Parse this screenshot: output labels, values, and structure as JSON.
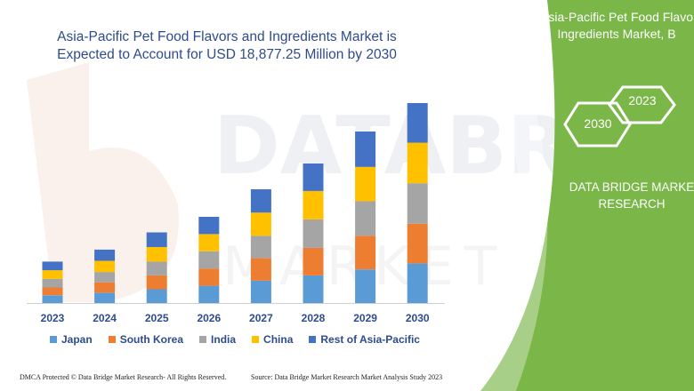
{
  "chart_data": {
    "type": "bar",
    "stacked": true,
    "title": "Asia-Pacific Pet Food Flavors and Ingredients Market is Expected to Account for USD 18,877.25 Million by 2030",
    "title_lines": [
      "Asia-Pacific Pet Food Flavors and Ingredients Market is",
      "Expected to Account for USD 18,877.25 Million by 2030"
    ],
    "categories": [
      "2023",
      "2024",
      "2025",
      "2026",
      "2027",
      "2028",
      "2029",
      "2030"
    ],
    "series": [
      {
        "name": "Japan",
        "color": "#5b9bd5",
        "values": [
          9,
          12,
          16,
          20,
          26,
          32,
          39,
          46
        ]
      },
      {
        "name": "South Korea",
        "color": "#ed7d31",
        "values": [
          9,
          12,
          16,
          20,
          26,
          32,
          39,
          46
        ]
      },
      {
        "name": "India",
        "color": "#a5a5a5",
        "values": [
          10,
          12,
          16,
          20,
          26,
          33,
          40,
          47
        ]
      },
      {
        "name": "China",
        "color": "#ffc000",
        "values": [
          10,
          13,
          17,
          20,
          27,
          33,
          40,
          47
        ]
      },
      {
        "name": "Rest of Asia-Pacific",
        "color": "#4472c4",
        "values": [
          10,
          13,
          17,
          20,
          27,
          32,
          41,
          46
        ]
      }
    ],
    "legend_position": "bottom",
    "grid": false
  },
  "panel": {
    "title_lines": [
      "Asia-Pacific Pet Food Flavo",
      "Ingredients Market, B"
    ],
    "hex_2023": "2023",
    "hex_2030": "2030",
    "brand_lines": [
      "DATA BRIDGE MARKE",
      "RESEARCH"
    ]
  },
  "footer": {
    "left": "DMCA Protected © Data Bridge Market Research- All Rights Reserved.",
    "right": "Source: Data Bridge Market Research Market Analysis Study 2023"
  },
  "colors": {
    "panel_green": "#7ab648",
    "title_blue": "#2e4b8c"
  }
}
